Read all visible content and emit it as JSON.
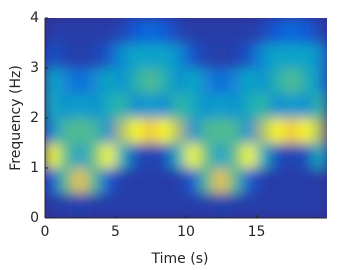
{
  "chart_data": {
    "type": "heatmap",
    "xlabel": "Time (s)",
    "ylabel": "Frequency (Hz)",
    "xlim": [
      0,
      20
    ],
    "xticks": [
      0,
      5,
      10,
      15
    ],
    "ylim": [
      0,
      4
    ],
    "yticks": [
      0,
      1,
      2,
      3,
      4
    ],
    "colormap": [
      "#352a87",
      "#0f5cdd",
      "#1481d6",
      "#06a4ca",
      "#2eb7a4",
      "#87bf77",
      "#d1bb59",
      "#fec832",
      "#f9fb0e"
    ],
    "x": [
      0.5,
      1.5,
      2.5,
      3.5,
      4.5,
      5.5,
      6.5,
      7.5,
      8.5,
      9.5,
      10.5,
      11.5,
      12.5,
      13.5,
      14.5,
      15.5,
      16.5,
      17.5,
      18.5,
      19.5
    ],
    "y": [
      0.25,
      0.75,
      1.25,
      1.75,
      2.25,
      2.75,
      3.25,
      3.75
    ],
    "z": [
      [
        0.05,
        0.05,
        0.06,
        0.05,
        0.05,
        0.05,
        0.05,
        0.05,
        0.05,
        0.05,
        0.05,
        0.05,
        0.06,
        0.05,
        0.05,
        0.05,
        0.05,
        0.05,
        0.05,
        0.05
      ],
      [
        0.11,
        0.55,
        0.83,
        0.55,
        0.11,
        0.05,
        0.05,
        0.05,
        0.05,
        0.05,
        0.11,
        0.55,
        0.83,
        0.55,
        0.11,
        0.05,
        0.05,
        0.05,
        0.05,
        0.05
      ],
      [
        1,
        0.57,
        0.36,
        0.57,
        1,
        0.42,
        0.08,
        0.06,
        0.08,
        0.42,
        1,
        0.57,
        0.36,
        0.57,
        1,
        0.42,
        0.08,
        0.06,
        0.08,
        0.42
      ],
      [
        0.29,
        0.54,
        0.55,
        0.54,
        0.29,
        0.69,
        1,
        0.83,
        1,
        0.69,
        0.29,
        0.54,
        0.55,
        0.54,
        0.29,
        0.69,
        1,
        0.83,
        1,
        0.69
      ],
      [
        0.42,
        0.31,
        0.36,
        0.31,
        0.42,
        0.5,
        0.29,
        0.36,
        0.29,
        0.5,
        0.42,
        0.31,
        0.36,
        0.31,
        0.42,
        0.5,
        0.29,
        0.36,
        0.29,
        0.5
      ],
      [
        0.4,
        0.26,
        0.18,
        0.26,
        0.4,
        0.3,
        0.47,
        0.55,
        0.47,
        0.3,
        0.4,
        0.26,
        0.18,
        0.26,
        0.4,
        0.3,
        0.47,
        0.55,
        0.47,
        0.3
      ],
      [
        0.1,
        0.06,
        0.05,
        0.06,
        0.1,
        0.3,
        0.39,
        0.36,
        0.39,
        0.3,
        0.1,
        0.06,
        0.05,
        0.06,
        0.1,
        0.3,
        0.39,
        0.36,
        0.39,
        0.3
      ],
      [
        0.05,
        0.05,
        0.05,
        0.05,
        0.05,
        0.07,
        0.12,
        0.18,
        0.12,
        0.07,
        0.05,
        0.05,
        0.05,
        0.05,
        0.05,
        0.07,
        0.12,
        0.18,
        0.12,
        0.07
      ]
    ]
  }
}
